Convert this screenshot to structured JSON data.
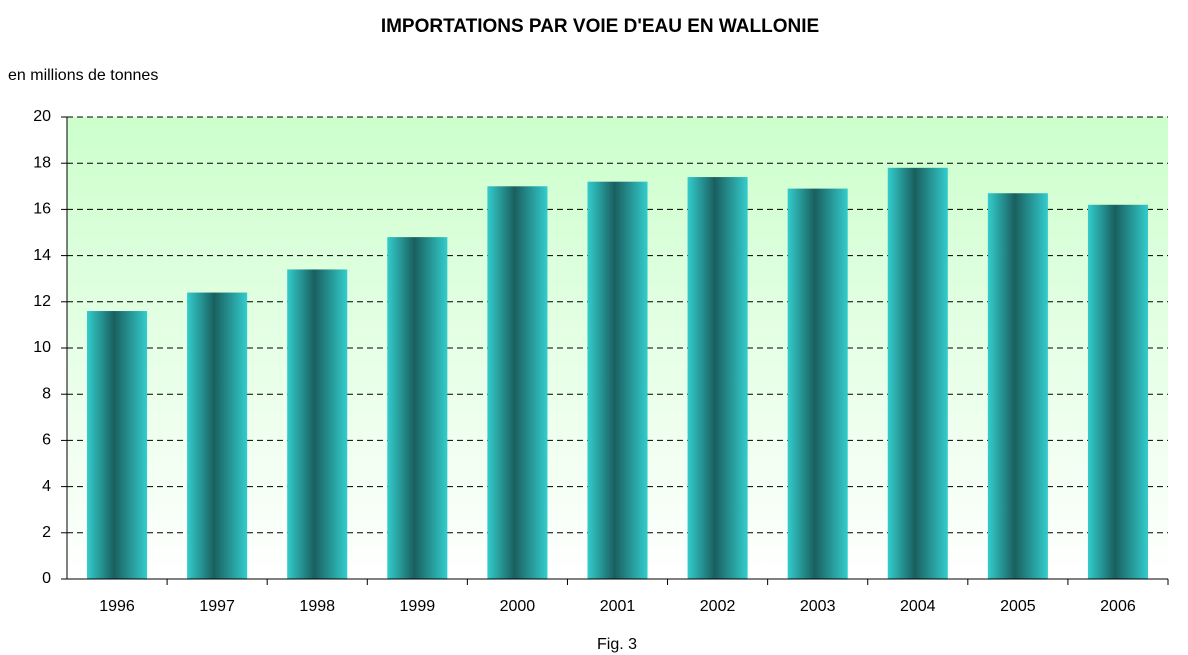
{
  "chart_data": {
    "type": "bar",
    "title": "IMPORTATIONS PAR VOIE D'EAU EN WALLONIE",
    "y_label": "en millions de tonnes",
    "caption": "Fig. 3",
    "categories": [
      "1996",
      "1997",
      "1998",
      "1999",
      "2000",
      "2001",
      "2002",
      "2003",
      "2004",
      "2005",
      "2006"
    ],
    "values": [
      11.6,
      12.4,
      13.4,
      14.8,
      17.0,
      17.2,
      17.4,
      16.9,
      17.8,
      16.7,
      16.2
    ],
    "color": "#33cccc",
    "ylim": [
      0,
      20
    ],
    "yticks": [
      0,
      2,
      4,
      6,
      8,
      10,
      12,
      14,
      16,
      18,
      20
    ],
    "grid": true
  }
}
